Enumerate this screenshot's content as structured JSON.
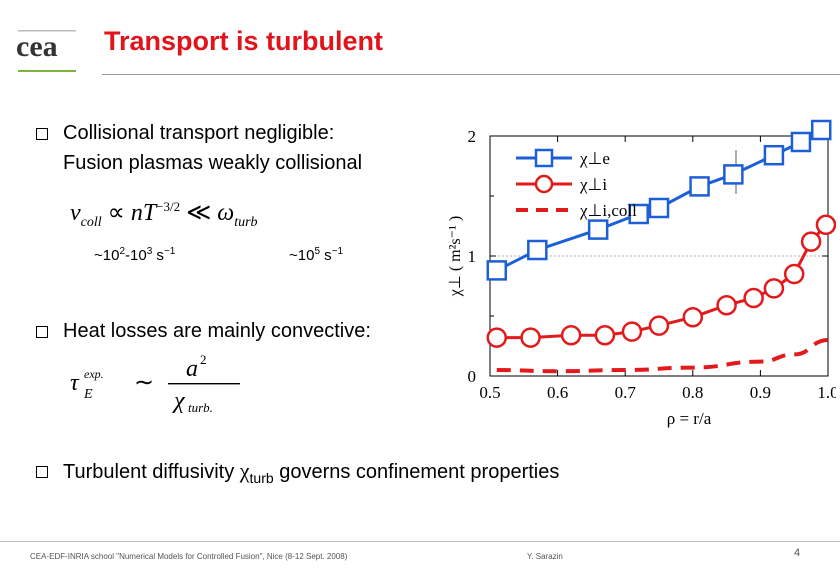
{
  "slide": {
    "title": "Transport is turbulent",
    "bullets": [
      {
        "line1": "Collisional transport negligible:",
        "line2": "Fusion plasmas weakly collisional"
      },
      {
        "line1": "Heat losses are mainly convective:"
      },
      {
        "prefix": "Turbulent diffusivity ",
        "chi": "χ",
        "sub": "turb",
        "suffix": " governs confinement properties"
      }
    ],
    "formula1": {
      "nu": "ν",
      "nu_sub": "coll",
      "prop": "∝",
      "n": "nT",
      "exp": "−3/2",
      "ll": "≪",
      "omega": "ω",
      "omega_sub": "turb"
    },
    "formula2": {
      "tau": "τ",
      "tau_sup": "exp.",
      "tau_sub": "E",
      "sim": "∼",
      "num": "a",
      "num_sup": "2",
      "den": "χ",
      "den_sub": "turb."
    },
    "coll_freq": {
      "pre": "~10",
      "e1": "2",
      "mid": "-10",
      "e2": "3",
      "unit": " s",
      "unit_exp": "−1"
    },
    "turb_freq": {
      "pre": "~10",
      "e1": "5",
      "unit": " s",
      "unit_exp": "−1"
    },
    "footer": {
      "left": "CEA-EDF-INRIA school \"Numerical Models for Controlled Fusion\", Nice (8-12 Sept. 2008)",
      "author": "Y. Sarazin",
      "page": "4"
    },
    "colors": {
      "title": "#e0141a",
      "chi_e": "#1d5fd6",
      "chi_i": "#e31a1c"
    }
  },
  "chart_data": {
    "type": "line",
    "xlabel": "ρ = r/a",
    "ylabel": "χ⊥ ( m²s⁻¹ )",
    "xlim": [
      0.5,
      1.0
    ],
    "ylim": [
      0,
      2
    ],
    "x_ticks": [
      "0.5",
      "0.6",
      "0.7",
      "0.8",
      "0.9",
      "1.0"
    ],
    "y_ticks": [
      "0",
      "1",
      "2"
    ],
    "legend": {
      "placement": "top-left"
    },
    "grid": false,
    "series": [
      {
        "name": "χ⊥e",
        "color": "#1d5fd6",
        "marker": "square",
        "style": "solid",
        "x": [
          0.51,
          0.57,
          0.66,
          0.72,
          0.75,
          0.81,
          0.86,
          0.92,
          0.96,
          0.99
        ],
        "y": [
          0.88,
          1.05,
          1.22,
          1.35,
          1.4,
          1.58,
          1.68,
          1.84,
          1.95,
          2.05
        ]
      },
      {
        "name": "χ⊥i",
        "color": "#e31a1c",
        "marker": "circle",
        "style": "solid",
        "x": [
          0.51,
          0.56,
          0.62,
          0.67,
          0.71,
          0.75,
          0.8,
          0.85,
          0.89,
          0.92,
          0.95,
          0.975,
          0.997
        ],
        "y": [
          0.32,
          0.32,
          0.34,
          0.34,
          0.37,
          0.42,
          0.49,
          0.59,
          0.65,
          0.73,
          0.85,
          1.12,
          1.26
        ]
      },
      {
        "name": "χ⊥i,coll",
        "color": "#e31a1c",
        "marker": "none",
        "style": "dashed",
        "x": [
          0.51,
          0.6,
          0.7,
          0.8,
          0.9,
          0.95,
          1.0
        ],
        "y": [
          0.05,
          0.04,
          0.05,
          0.07,
          0.12,
          0.18,
          0.3
        ]
      }
    ]
  }
}
